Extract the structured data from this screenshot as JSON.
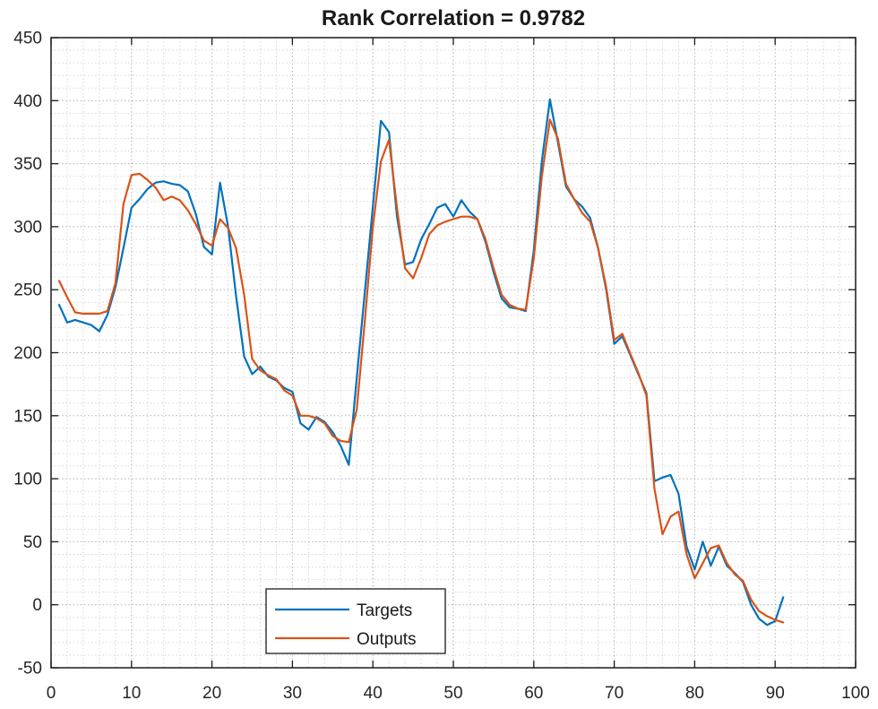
{
  "title": "Rank Correlation = 0.9782",
  "chart_data": {
    "type": "line",
    "title": "Rank Correlation = 0.9782",
    "xlabel": "",
    "ylabel": "",
    "xlim": [
      0,
      100
    ],
    "ylim": [
      -50,
      450
    ],
    "x_ticks": [
      0,
      10,
      20,
      30,
      40,
      50,
      60,
      70,
      80,
      90,
      100
    ],
    "y_ticks": [
      -50,
      0,
      50,
      100,
      150,
      200,
      250,
      300,
      350,
      400,
      450
    ],
    "grid": "dotted major and minor grid, box axes with inward ticks",
    "minor_x_step": 2,
    "minor_y_step": 10,
    "legend_position": "inside-bottom-center-left",
    "x": [
      1,
      2,
      3,
      4,
      5,
      6,
      7,
      8,
      9,
      10,
      11,
      12,
      13,
      14,
      15,
      16,
      17,
      18,
      19,
      20,
      21,
      22,
      23,
      24,
      25,
      26,
      27,
      28,
      29,
      30,
      31,
      32,
      33,
      34,
      35,
      36,
      37,
      38,
      39,
      40,
      41,
      42,
      43,
      44,
      45,
      46,
      47,
      48,
      49,
      50,
      51,
      52,
      53,
      54,
      55,
      56,
      57,
      58,
      59,
      60,
      61,
      62,
      63,
      64,
      65,
      66,
      67,
      68,
      69,
      70,
      71,
      72,
      73,
      74,
      75,
      76,
      77,
      78,
      79,
      80,
      81,
      82,
      83,
      84,
      85,
      86,
      87,
      88,
      89,
      90,
      91
    ],
    "series": [
      {
        "name": "Targets",
        "color": "#0072BD",
        "values": [
          238,
          224,
          226,
          224,
          222,
          217,
          230,
          252,
          283,
          315,
          322,
          330,
          335,
          336,
          334,
          333,
          328,
          310,
          284,
          278,
          335,
          300,
          245,
          197,
          183,
          189,
          181,
          178,
          172,
          169,
          144,
          139,
          149,
          145,
          137,
          126,
          111,
          180,
          248,
          316,
          384,
          375,
          308,
          270,
          272,
          290,
          302,
          315,
          318,
          308,
          321,
          312,
          306,
          288,
          264,
          243,
          236,
          235,
          233,
          281,
          352,
          401,
          367,
          332,
          322,
          316,
          307,
          283,
          250,
          207,
          213,
          198,
          183,
          168,
          98,
          101,
          103,
          88,
          46,
          28,
          50,
          31,
          46,
          31,
          25,
          18,
          0,
          -11,
          -16,
          -13,
          6
        ]
      },
      {
        "name": "Outputs",
        "color": "#D95319",
        "values": [
          257,
          244,
          232,
          231,
          231,
          231,
          233,
          255,
          318,
          341,
          342,
          337,
          331,
          321,
          324,
          321,
          313,
          302,
          289,
          285,
          306,
          299,
          283,
          246,
          195,
          186,
          182,
          179,
          170,
          166,
          150,
          150,
          148,
          144,
          134,
          130,
          129,
          155,
          225,
          300,
          352,
          369,
          315,
          267,
          259,
          275,
          294,
          301,
          304,
          306,
          308,
          308,
          306,
          290,
          267,
          246,
          238,
          235,
          234,
          275,
          340,
          385,
          370,
          334,
          322,
          311,
          304,
          283,
          252,
          210,
          215,
          199,
          184,
          166,
          92,
          56,
          70,
          74,
          40,
          21,
          33,
          45,
          47,
          33,
          24,
          19,
          4,
          -5,
          -9,
          -12,
          -14
        ]
      }
    ],
    "axes_colors": {
      "spine": "#1a1a1a",
      "tick_label": "#262626",
      "grid_major": "#b0b0b0",
      "grid_minor": "#d6d6d6"
    }
  }
}
